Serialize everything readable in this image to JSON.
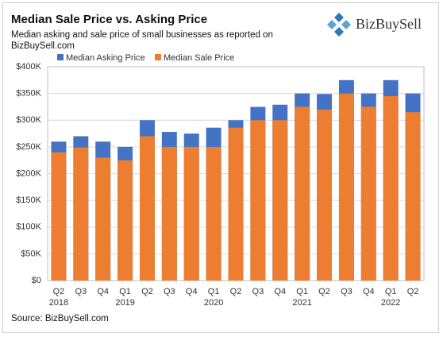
{
  "chart_data": {
    "type": "overlap_bar",
    "title": "Median Sale Price vs. Asking Price",
    "subtitle": "Median asking and sale price of small businesses as reported on BizBuySell.com",
    "logo": "BizBuySell",
    "source": "Source: BizBuySell.com",
    "categories": [
      "Q2",
      "Q3",
      "Q4",
      "Q1",
      "Q2",
      "Q3",
      "Q4",
      "Q1",
      "Q2",
      "Q3",
      "Q4",
      "Q1",
      "Q2",
      "Q3",
      "Q4",
      "Q1",
      "Q2"
    ],
    "category_years": [
      "2018",
      null,
      null,
      "2019",
      null,
      null,
      null,
      "2020",
      null,
      null,
      null,
      "2021",
      null,
      null,
      null,
      "2022",
      null
    ],
    "series": [
      {
        "name": "Median Asking Price",
        "color": "#4472c4",
        "values": [
          260000,
          270000,
          260000,
          250000,
          300000,
          278000,
          275000,
          286000,
          300000,
          325000,
          329000,
          350000,
          349000,
          375000,
          350000,
          375000,
          350000
        ]
      },
      {
        "name": "Median Sale Price",
        "color": "#ed7d31",
        "values": [
          240000,
          249000,
          230000,
          225000,
          270000,
          250000,
          250000,
          250000,
          286000,
          300000,
          300000,
          325000,
          320000,
          350000,
          325000,
          345000,
          315000
        ]
      }
    ],
    "ylim": [
      0,
      400000
    ],
    "yticks": [
      {
        "value": 0,
        "label": "$0"
      },
      {
        "value": 50000,
        "label": "$50K"
      },
      {
        "value": 100000,
        "label": "$100K"
      },
      {
        "value": 150000,
        "label": "$150K"
      },
      {
        "value": 200000,
        "label": "$200K"
      },
      {
        "value": 250000,
        "label": "$250K"
      },
      {
        "value": 300000,
        "label": "$300K"
      },
      {
        "value": 350000,
        "label": "$350K"
      },
      {
        "value": 400000,
        "label": "$400K"
      }
    ],
    "grid": true,
    "legend": "top-left"
  }
}
